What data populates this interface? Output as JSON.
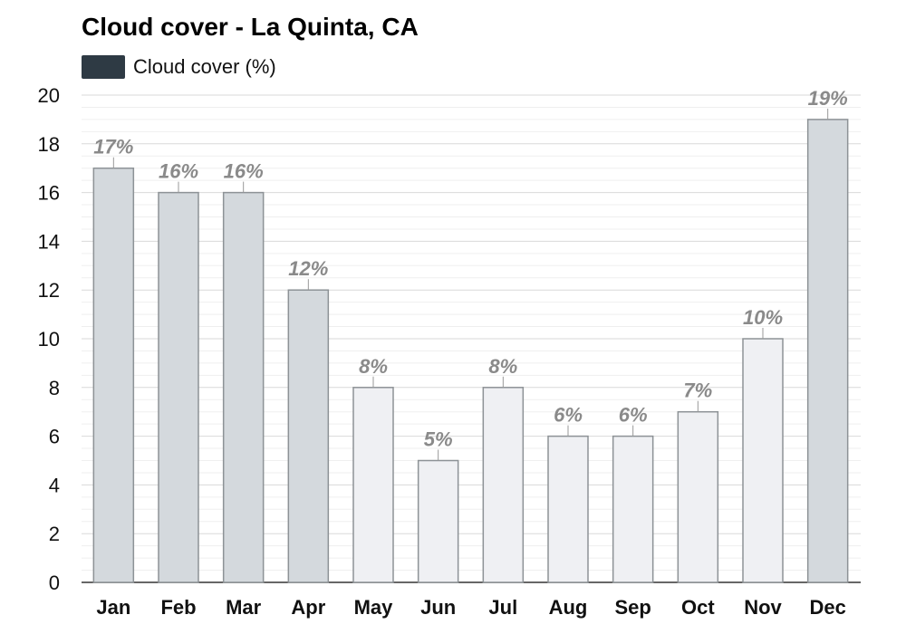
{
  "title": "Cloud cover - La Quinta, CA",
  "legend": {
    "label": "Cloud cover (%)",
    "color": "#2e3a44"
  },
  "chart_data": {
    "type": "bar",
    "title": "Cloud cover - La Quinta, CA",
    "categories": [
      "Jan",
      "Feb",
      "Mar",
      "Apr",
      "May",
      "Jun",
      "Jul",
      "Aug",
      "Sep",
      "Oct",
      "Nov",
      "Dec"
    ],
    "series": [
      {
        "name": "Cloud cover (%)",
        "values": [
          17,
          16,
          16,
          12,
          8,
          5,
          8,
          6,
          6,
          7,
          10,
          19
        ]
      }
    ],
    "data_labels": [
      "17%",
      "16%",
      "16%",
      "12%",
      "8%",
      "5%",
      "8%",
      "6%",
      "6%",
      "7%",
      "10%",
      "19%"
    ],
    "xlabel": "",
    "ylabel": "",
    "ylim": [
      0,
      20
    ],
    "yticks": [
      0,
      2,
      4,
      6,
      8,
      10,
      12,
      14,
      16,
      18,
      20
    ],
    "grid": true,
    "legend_position": "top-left",
    "colors": {
      "dark_bar": "#d4d9dd",
      "light_bar": "#eff0f3",
      "bar_border": "#8d9296",
      "label": "#8a8a8a"
    }
  }
}
